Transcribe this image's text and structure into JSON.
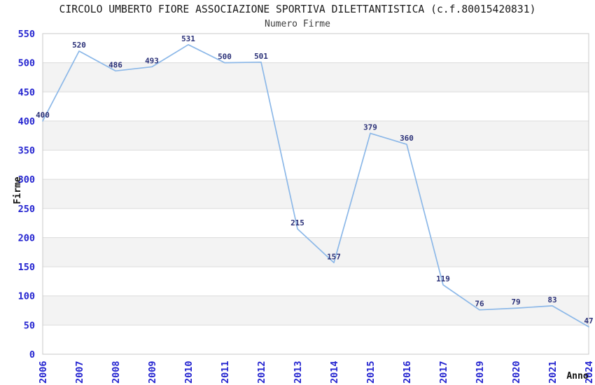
{
  "chart_data": {
    "type": "line",
    "title": "CIRCOLO UMBERTO FIORE ASSOCIAZIONE SPORTIVA DILETTANTISTICA (c.f.80015420831)",
    "subtitle": "Numero Firme",
    "xlabel": "Anno",
    "ylabel": "Firme",
    "categories": [
      "2006",
      "2007",
      "2008",
      "2009",
      "2010",
      "2011",
      "2012",
      "2013",
      "2014",
      "2015",
      "2016",
      "2017",
      "2019",
      "2020",
      "2021",
      "2024"
    ],
    "values": [
      400,
      520,
      486,
      493,
      531,
      500,
      501,
      215,
      157,
      379,
      360,
      119,
      76,
      79,
      83,
      47
    ],
    "ylim": [
      0,
      550
    ],
    "ytick_step": 50,
    "grid": "horizontal-gridlines-with-alternating-bands",
    "legend": "none",
    "colors": {
      "line": "#8cb8e8",
      "data_label": "#2b3178",
      "tick_label": "#2424d0",
      "band_gray": "#f3f3f3",
      "band_white": "#ffffff",
      "gridline": "#dcdcdc",
      "border": "#c8c8c8",
      "axis_label": "#111111"
    }
  }
}
